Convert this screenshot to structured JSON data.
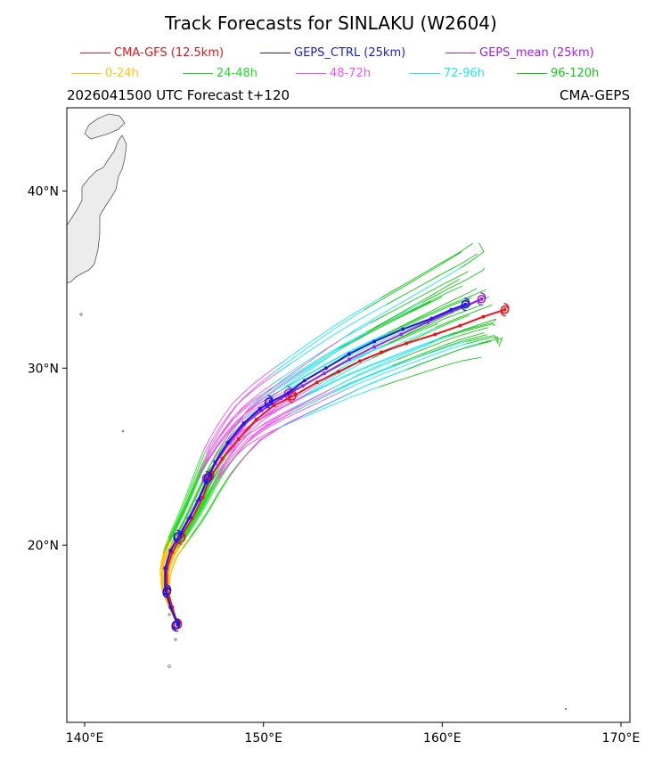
{
  "title": "Track Forecasts for SINLAKU (W2604)",
  "legend_models": [
    {
      "label": "CMA-GFS (12.5km)",
      "color": "#e8141c"
    },
    {
      "label": "GEPS_CTRL (25km)",
      "color": "#1a1ae6"
    },
    {
      "label": "GEPS_mean (25km)",
      "color": "#a020f0"
    }
  ],
  "legend_periods": [
    {
      "label": "0-24h",
      "color": "#ffc20e"
    },
    {
      "label": "24-48h",
      "color": "#22dd22"
    },
    {
      "label": "48-72h",
      "color": "#ee55ee"
    },
    {
      "label": "72-96h",
      "color": "#22e8ee"
    },
    {
      "label": "96-120h",
      "color": "#16c816"
    }
  ],
  "subtitle_left": "2026041500 UTC Forecast t+120",
  "subtitle_right": "CMA-GEPS",
  "map_extent": {
    "lon": [
      139,
      170.5
    ],
    "lat": [
      10,
      44.7
    ]
  },
  "lon_ticks": [
    "140°E",
    "150°E",
    "160°E",
    "170°E"
  ],
  "lat_ticks": [
    "20°N",
    "30°N",
    "40°N"
  ],
  "tracks": {
    "cma_gfs": [
      [
        145.2,
        15.5
      ],
      [
        144.9,
        16.5
      ],
      [
        144.6,
        17.5
      ],
      [
        144.6,
        18.7
      ],
      [
        144.9,
        19.6
      ],
      [
        145.4,
        20.5
      ],
      [
        146.0,
        21.5
      ],
      [
        146.6,
        22.7
      ],
      [
        147.0,
        23.8
      ],
      [
        147.7,
        24.9
      ],
      [
        148.6,
        26.0
      ],
      [
        149.6,
        27.1
      ],
      [
        150.6,
        27.9
      ],
      [
        151.8,
        28.5
      ],
      [
        153.0,
        29.2
      ],
      [
        154.2,
        29.8
      ],
      [
        155.4,
        30.4
      ],
      [
        156.6,
        30.9
      ],
      [
        158.0,
        31.4
      ],
      [
        159.6,
        31.9
      ],
      [
        161.0,
        32.4
      ],
      [
        162.3,
        32.9
      ],
      [
        163.5,
        33.3
      ]
    ],
    "geps_ctrl": [
      [
        145.2,
        15.5
      ],
      [
        144.8,
        16.5
      ],
      [
        144.5,
        17.5
      ],
      [
        144.5,
        18.7
      ],
      [
        144.8,
        19.7
      ],
      [
        145.4,
        20.7
      ],
      [
        145.9,
        21.6
      ],
      [
        146.4,
        22.6
      ],
      [
        146.8,
        23.6
      ],
      [
        147.3,
        24.7
      ],
      [
        148.0,
        25.8
      ],
      [
        148.9,
        26.9
      ],
      [
        149.8,
        27.7
      ],
      [
        150.4,
        28.1
      ],
      [
        151.4,
        28.6
      ],
      [
        152.3,
        29.3
      ],
      [
        153.5,
        30.0
      ],
      [
        154.8,
        30.8
      ],
      [
        156.2,
        31.5
      ],
      [
        157.8,
        32.2
      ],
      [
        159.4,
        32.8
      ],
      [
        160.5,
        33.3
      ],
      [
        161.3,
        33.6
      ]
    ],
    "geps_mean": [
      [
        145.2,
        15.5
      ],
      [
        144.8,
        16.5
      ],
      [
        144.5,
        17.5
      ],
      [
        144.5,
        18.7
      ],
      [
        144.8,
        19.7
      ],
      [
        145.3,
        20.6
      ],
      [
        145.8,
        21.5
      ],
      [
        146.3,
        22.5
      ],
      [
        146.8,
        23.6
      ],
      [
        147.3,
        24.6
      ],
      [
        148.1,
        25.8
      ],
      [
        148.9,
        26.8
      ],
      [
        149.9,
        27.6
      ],
      [
        151.0,
        28.3
      ],
      [
        152.2,
        29.0
      ],
      [
        153.4,
        29.7
      ],
      [
        154.8,
        30.5
      ],
      [
        156.2,
        31.2
      ],
      [
        157.7,
        31.9
      ],
      [
        159.2,
        32.6
      ],
      [
        160.5,
        33.2
      ],
      [
        161.5,
        33.6
      ],
      [
        162.2,
        33.9
      ]
    ]
  },
  "markers": {
    "cma_gfs": [
      [
        145.2,
        15.5
      ],
      [
        144.6,
        17.4
      ],
      [
        145.4,
        20.4
      ],
      [
        147.0,
        23.9
      ],
      [
        151.6,
        28.4
      ],
      [
        163.5,
        33.3
      ]
    ],
    "geps_ctrl": [
      [
        145.1,
        15.5
      ],
      [
        144.6,
        17.4
      ],
      [
        145.2,
        20.5
      ],
      [
        146.9,
        23.8
      ],
      [
        150.3,
        28.1
      ],
      [
        161.3,
        33.6
      ]
    ],
    "geps_mean": [
      [
        145.1,
        15.5
      ],
      [
        144.6,
        17.4
      ],
      [
        145.2,
        20.5
      ],
      [
        146.8,
        23.8
      ],
      [
        151.4,
        28.6
      ],
      [
        162.2,
        33.9
      ]
    ]
  }
}
